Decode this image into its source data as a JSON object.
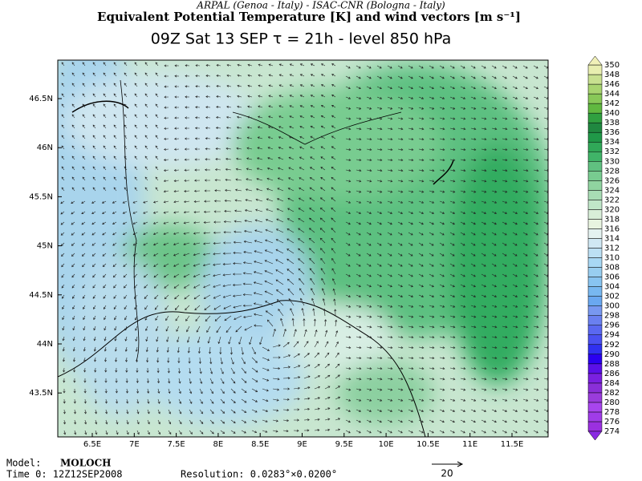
{
  "header": {
    "credit": "ARPAL (Genoa - Italy)  -  ISAC-CNR (Bologna - Italy)",
    "title": "Equivalent Potential Temperature [K] and wind vectors [m s⁻¹]",
    "subtitle": "09Z Sat 13 SEP   τ = 21h   -   level 850 hPa"
  },
  "map": {
    "lon_labels": [
      "6.5E",
      "7E",
      "7.5E",
      "8E",
      "8.5E",
      "9E",
      "9.5E",
      "10E",
      "10.5E",
      "11E",
      "11.5E"
    ],
    "lat_labels": [
      "46.5N",
      "46N",
      "45.5N",
      "45N",
      "44.5N",
      "44N",
      "43.5N"
    ]
  },
  "colorbar": {
    "levels": [
      274,
      276,
      278,
      280,
      282,
      284,
      286,
      288,
      290,
      292,
      294,
      296,
      298,
      300,
      302,
      304,
      306,
      308,
      310,
      312,
      314,
      316,
      318,
      320,
      322,
      324,
      326,
      328,
      330,
      332,
      334,
      336,
      338,
      340,
      342,
      344,
      346,
      348,
      350
    ],
    "colors": [
      "#9b30e0",
      "#a03ce8",
      "#a845ee",
      "#9a3cdc",
      "#8a2fd8",
      "#7a20e0",
      "#5a10e8",
      "#2a00f0",
      "#3030f0",
      "#4a50f0",
      "#5a68f0",
      "#6a80f0",
      "#7898f0",
      "#6aa8f0",
      "#78b8f0",
      "#88c4f0",
      "#98cef0",
      "#a8d8f4",
      "#bce0f4",
      "#d0e8f4",
      "#e4f2f0",
      "#e8f4e0",
      "#d8eed8",
      "#c0e6c8",
      "#a8dcb4",
      "#90d4a0",
      "#78cc90",
      "#60c080",
      "#40b468",
      "#30a858",
      "#209848",
      "#208840",
      "#30a040",
      "#60b840",
      "#88c858",
      "#a8d470",
      "#c8e090",
      "#e8eeb0"
    ],
    "under_color": "#8a2be2",
    "over_color": "#f0f0b8"
  },
  "footer": {
    "model_label": "Model:",
    "model": "MOLOCH",
    "time": "Time 0: 12Z12SEP2008",
    "resolution": "Resolution: 0.0283°×0.0200°",
    "scale": "20"
  }
}
